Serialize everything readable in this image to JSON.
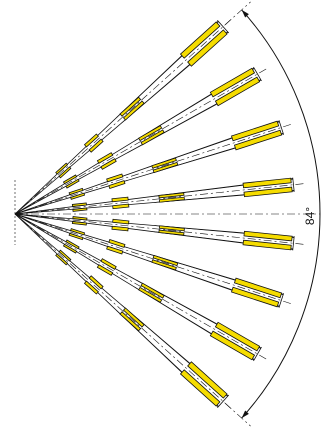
{
  "diagram": {
    "angle_label": "84°",
    "fan_angle_deg": 84,
    "ray_count": 8,
    "colors": {
      "stroke": "#111111",
      "highlight": "#f5dc00",
      "background": "#ffffff"
    }
  }
}
